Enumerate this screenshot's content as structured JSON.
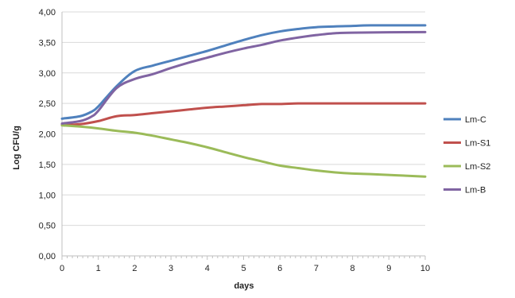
{
  "chart_data": {
    "type": "line",
    "xlabel": "days",
    "ylabel": "Log CFU/g",
    "xlim": [
      0,
      10
    ],
    "ylim": [
      0,
      4
    ],
    "xticks": [
      "0",
      "1",
      "2",
      "3",
      "4",
      "5",
      "6",
      "7",
      "8",
      "9",
      "10"
    ],
    "yticks": [
      "0,00",
      "0,50",
      "1,00",
      "1,50",
      "2,00",
      "2,50",
      "3,00",
      "3,50",
      "4,00"
    ],
    "grid": true,
    "legend_position": "right",
    "series": [
      {
        "name": "Lm-C",
        "color": "#4f81bd",
        "points": [
          [
            0,
            2.25
          ],
          [
            0.5,
            2.29
          ],
          [
            0.8,
            2.36
          ],
          [
            1,
            2.45
          ],
          [
            1.5,
            2.78
          ],
          [
            2,
            3.03
          ],
          [
            2.5,
            3.12
          ],
          [
            3,
            3.2
          ],
          [
            3.5,
            3.28
          ],
          [
            4,
            3.36
          ],
          [
            4.5,
            3.45
          ],
          [
            5,
            3.54
          ],
          [
            5.5,
            3.62
          ],
          [
            6,
            3.68
          ],
          [
            6.5,
            3.72
          ],
          [
            7,
            3.75
          ],
          [
            8,
            3.77
          ],
          [
            8.5,
            3.78
          ],
          [
            10,
            3.78
          ]
        ]
      },
      {
        "name": "Lm-S1",
        "color": "#c0504d",
        "points": [
          [
            0,
            2.15
          ],
          [
            0.5,
            2.16
          ],
          [
            1,
            2.21
          ],
          [
            1.5,
            2.29
          ],
          [
            2,
            2.31
          ],
          [
            2.5,
            2.34
          ],
          [
            3,
            2.37
          ],
          [
            3.5,
            2.4
          ],
          [
            4,
            2.43
          ],
          [
            4.5,
            2.45
          ],
          [
            5,
            2.47
          ],
          [
            5.5,
            2.49
          ],
          [
            6,
            2.49
          ],
          [
            6.5,
            2.5
          ],
          [
            7,
            2.5
          ],
          [
            10,
            2.5
          ]
        ]
      },
      {
        "name": "Lm-S2",
        "color": "#9bbb59",
        "points": [
          [
            0,
            2.14
          ],
          [
            0.5,
            2.12
          ],
          [
            1,
            2.09
          ],
          [
            1.5,
            2.05
          ],
          [
            2,
            2.02
          ],
          [
            2.5,
            1.97
          ],
          [
            3,
            1.91
          ],
          [
            3.5,
            1.85
          ],
          [
            4,
            1.78
          ],
          [
            4.5,
            1.7
          ],
          [
            5,
            1.62
          ],
          [
            5.5,
            1.55
          ],
          [
            6,
            1.48
          ],
          [
            6.5,
            1.44
          ],
          [
            7,
            1.4
          ],
          [
            7.5,
            1.37
          ],
          [
            8,
            1.35
          ],
          [
            8.5,
            1.34
          ],
          [
            10,
            1.3
          ]
        ]
      },
      {
        "name": "Lm-B",
        "color": "#8064a2",
        "points": [
          [
            0,
            2.17
          ],
          [
            0.5,
            2.21
          ],
          [
            0.8,
            2.28
          ],
          [
            1,
            2.38
          ],
          [
            1.5,
            2.75
          ],
          [
            2,
            2.9
          ],
          [
            2.5,
            2.98
          ],
          [
            3,
            3.08
          ],
          [
            3.5,
            3.17
          ],
          [
            4,
            3.25
          ],
          [
            4.5,
            3.33
          ],
          [
            5,
            3.4
          ],
          [
            5.5,
            3.46
          ],
          [
            6,
            3.53
          ],
          [
            6.5,
            3.58
          ],
          [
            7,
            3.62
          ],
          [
            7.5,
            3.65
          ],
          [
            8,
            3.66
          ],
          [
            10,
            3.67
          ]
        ]
      }
    ]
  }
}
